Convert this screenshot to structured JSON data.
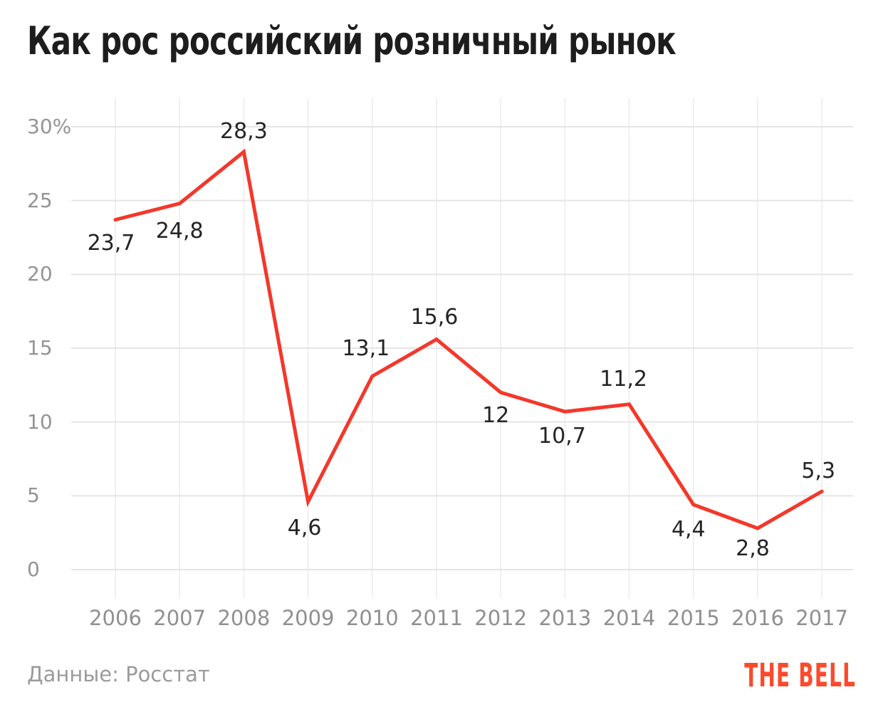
{
  "title": "Как рос российский розничный рынок",
  "source": "Данные: Росстат",
  "brand": "THE BELL",
  "colors": {
    "line": "#f3382a",
    "brand": "#fb4a2c",
    "grid_horizontal": "#e5e5e5",
    "grid_vertical": "#ececec",
    "text_dark": "#1d1d1d",
    "value_label": "#242424",
    "axis_text": "#949494"
  },
  "chart_data": {
    "type": "line",
    "title": "Как рос российский розничный рынок",
    "categories": [
      "2006",
      "2007",
      "2008",
      "2009",
      "2010",
      "2011",
      "2012",
      "2013",
      "2014",
      "2015",
      "2016",
      "2017"
    ],
    "values": [
      23.7,
      24.8,
      28.3,
      4.6,
      13.1,
      15.6,
      12,
      10.7,
      11.2,
      4.4,
      2.8,
      5.3
    ],
    "value_labels": [
      "23,7",
      "24,8",
      "28,3",
      "4,6",
      "13,1",
      "15,6",
      "12",
      "10,7",
      "11,2",
      "4,4",
      "2,8",
      "5,3"
    ],
    "unit": "%",
    "xlabel": "",
    "ylabel": "",
    "ylim": [
      0,
      30
    ],
    "ytick_values": [
      30,
      25,
      20,
      15,
      10,
      5,
      0
    ],
    "ytick_labels": [
      "30%",
      "25",
      "20",
      "15",
      "10",
      "5",
      "0"
    ],
    "grid": true,
    "legend": false,
    "source": "Данные: Росстат"
  }
}
